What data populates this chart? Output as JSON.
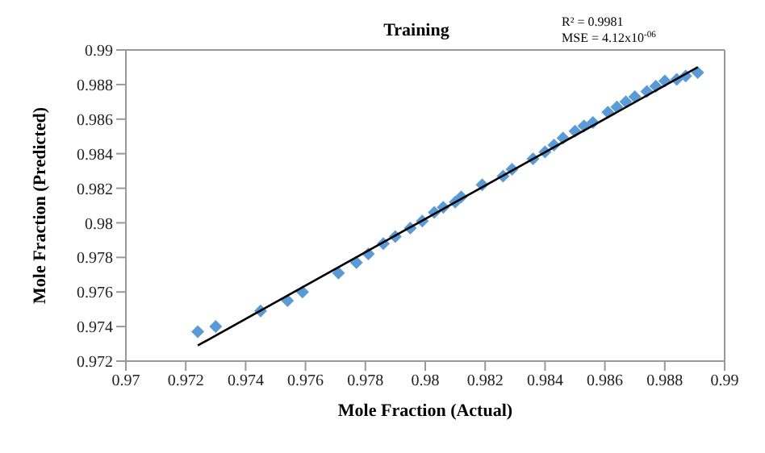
{
  "chart_data": {
    "type": "scatter",
    "title": "Training",
    "xlabel": "Mole Fraction (Actual)",
    "ylabel": "Mole Fraction (Predicted)",
    "annotations": [
      "R² = 0.9981",
      "MSE = 4.12x10$^{-06}$"
    ],
    "xlim": [
      0.97,
      0.99
    ],
    "xticks": [
      0.97,
      0.972,
      0.974,
      0.976,
      0.978,
      0.98,
      0.982,
      0.984,
      0.986,
      0.988,
      0.99
    ],
    "ylim": [
      0.972,
      0.99
    ],
    "yticks": [
      0.972,
      0.974,
      0.976,
      0.978,
      0.98,
      0.982,
      0.984,
      0.986,
      0.988,
      0.99
    ],
    "grid": false,
    "marker": "diamond",
    "series": [
      {
        "color": "#5b9bd5",
        "x": [
          0.9724,
          0.973,
          0.9745,
          0.9754,
          0.9759,
          0.9771,
          0.9777,
          0.9781,
          0.9786,
          0.979,
          0.9795,
          0.9799,
          0.9803,
          0.9806,
          0.981,
          0.9812,
          0.9819,
          0.9826,
          0.9829,
          0.9836,
          0.984,
          0.9843,
          0.9846,
          0.985,
          0.9853,
          0.9856,
          0.9861,
          0.9864,
          0.9867,
          0.987,
          0.9874,
          0.9877,
          0.988,
          0.9884,
          0.9887,
          0.9891
        ],
        "values": [
          0.9737,
          0.974,
          0.9749,
          0.9755,
          0.976,
          0.9771,
          0.9777,
          0.9782,
          0.9788,
          0.9792,
          0.9797,
          0.9801,
          0.9806,
          0.9809,
          0.9812,
          0.9815,
          0.9822,
          0.9827,
          0.9831,
          0.9837,
          0.9841,
          0.9845,
          0.9849,
          0.9853,
          0.9856,
          0.9858,
          0.9864,
          0.9867,
          0.987,
          0.9873,
          0.9876,
          0.9879,
          0.9882,
          0.9883,
          0.9885,
          0.9887
        ]
      },
      {
        "type": "line",
        "color": "#000000",
        "marker": "none",
        "x": [
          0.9724,
          0.9891
        ],
        "values": [
          0.9729,
          0.989
        ]
      }
    ]
  }
}
